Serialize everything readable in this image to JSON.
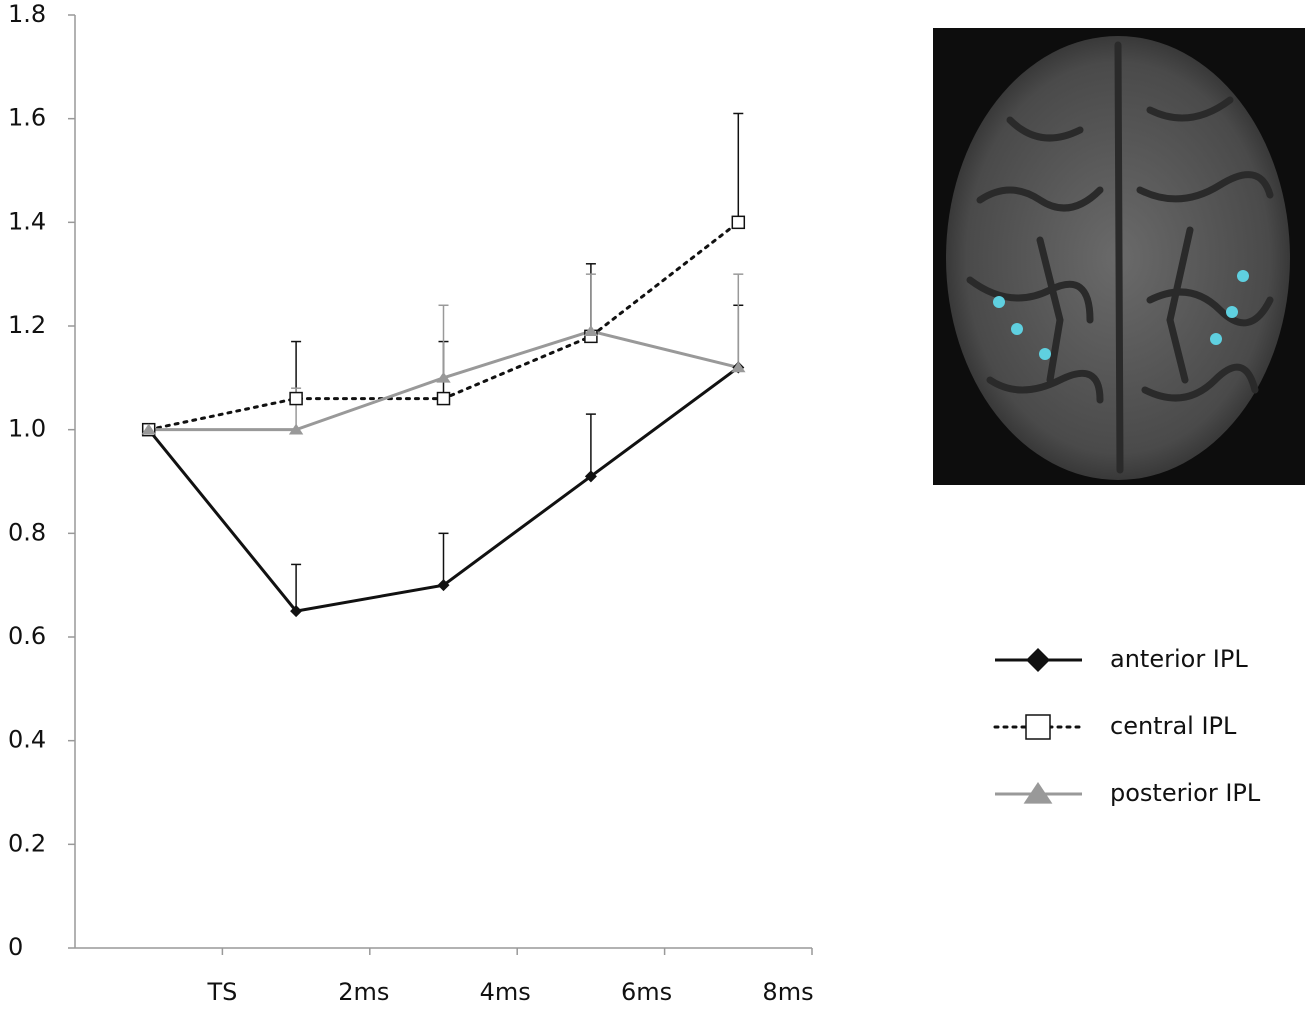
{
  "chart_data": {
    "type": "line",
    "categories": [
      "TS",
      "2ms",
      "4ms",
      "6ms",
      "8ms"
    ],
    "ylim": [
      0,
      1.8
    ],
    "yticks": [
      0,
      0.2,
      0.4,
      0.6,
      0.8,
      {
        "value": 1,
        "label": "1.0"
      },
      1.2,
      1.4,
      1.6,
      1.8
    ],
    "series": [
      {
        "name": "anterior IPL",
        "color": "#111111",
        "marker": "diamond",
        "dash": "solid",
        "values": [
          1.0,
          0.65,
          0.7,
          0.91,
          1.12
        ],
        "errors": [
          null,
          0.09,
          0.1,
          0.12,
          0.12
        ]
      },
      {
        "name": "central IPL",
        "color": "#111111",
        "marker": "square",
        "dash": "dotted",
        "values": [
          1.0,
          1.06,
          1.06,
          1.18,
          1.4
        ],
        "errors": [
          null,
          0.11,
          0.11,
          0.14,
          0.21
        ]
      },
      {
        "name": "posterior IPL",
        "color": "#999999",
        "marker": "triangle",
        "dash": "solid",
        "values": [
          1.0,
          1.0,
          1.1,
          1.19,
          1.12
        ],
        "errors": [
          null,
          0.08,
          0.14,
          0.11,
          0.18
        ]
      }
    ]
  }
}
